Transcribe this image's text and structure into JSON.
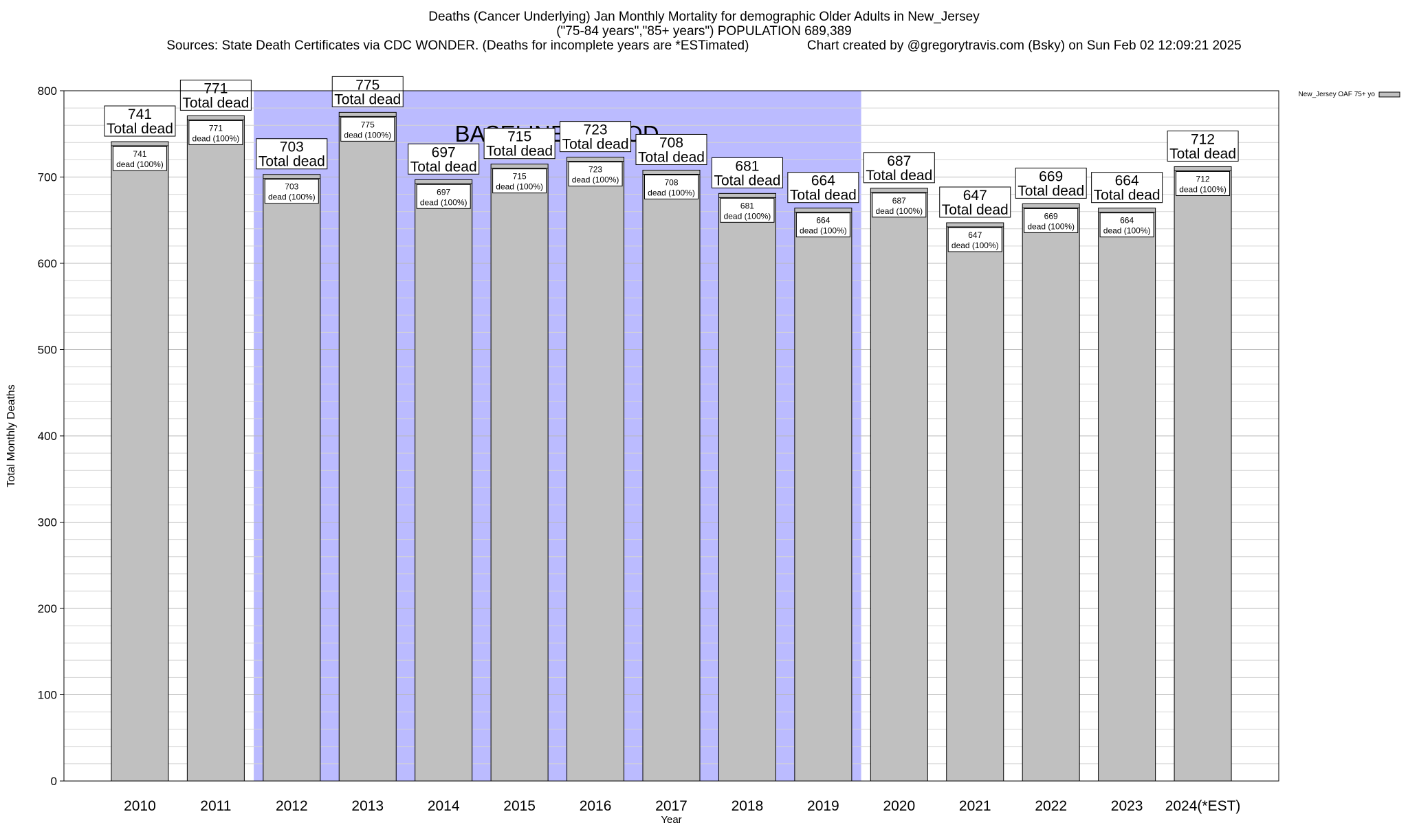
{
  "chart_data": {
    "type": "bar",
    "title": "Deaths (Cancer Underlying) Jan Monthly Mortality for demographic Older Adults in New_Jersey",
    "subtitle": "(\"75-84 years\",\"85+ years\") POPULATION 689,389",
    "sources": "Sources: State Death Certificates via CDC WONDER. (Deaths for incomplete years are *ESTimated)",
    "credit": "Chart created by @gregorytravis.com (Bsky) on Sun Feb 02 12:09:21 2025",
    "xlabel": "Year",
    "ylabel": "Total Monthly Deaths",
    "ylim": [
      0,
      800
    ],
    "yticks": [
      0,
      100,
      200,
      300,
      400,
      500,
      600,
      700,
      800
    ],
    "categories": [
      "2010",
      "2011",
      "2012",
      "2013",
      "2014",
      "2015",
      "2016",
      "2017",
      "2018",
      "2019",
      "2020",
      "2021",
      "2022",
      "2023",
      "2024(*EST)"
    ],
    "series": [
      {
        "name": "New_Jersey OAF 75+ yo",
        "values": [
          741,
          771,
          703,
          775,
          697,
          715,
          723,
          708,
          681,
          664,
          687,
          647,
          669,
          664,
          712
        ]
      }
    ],
    "total_label": "Total dead",
    "inner_label": "dead (100%)",
    "baseline": {
      "label": "BASELINE PERIOD",
      "start": "2012",
      "end": "2019",
      "color": "#bbbbff"
    },
    "bar_color": "#c0c0c0",
    "grid": true,
    "legend_position": "top-right"
  }
}
